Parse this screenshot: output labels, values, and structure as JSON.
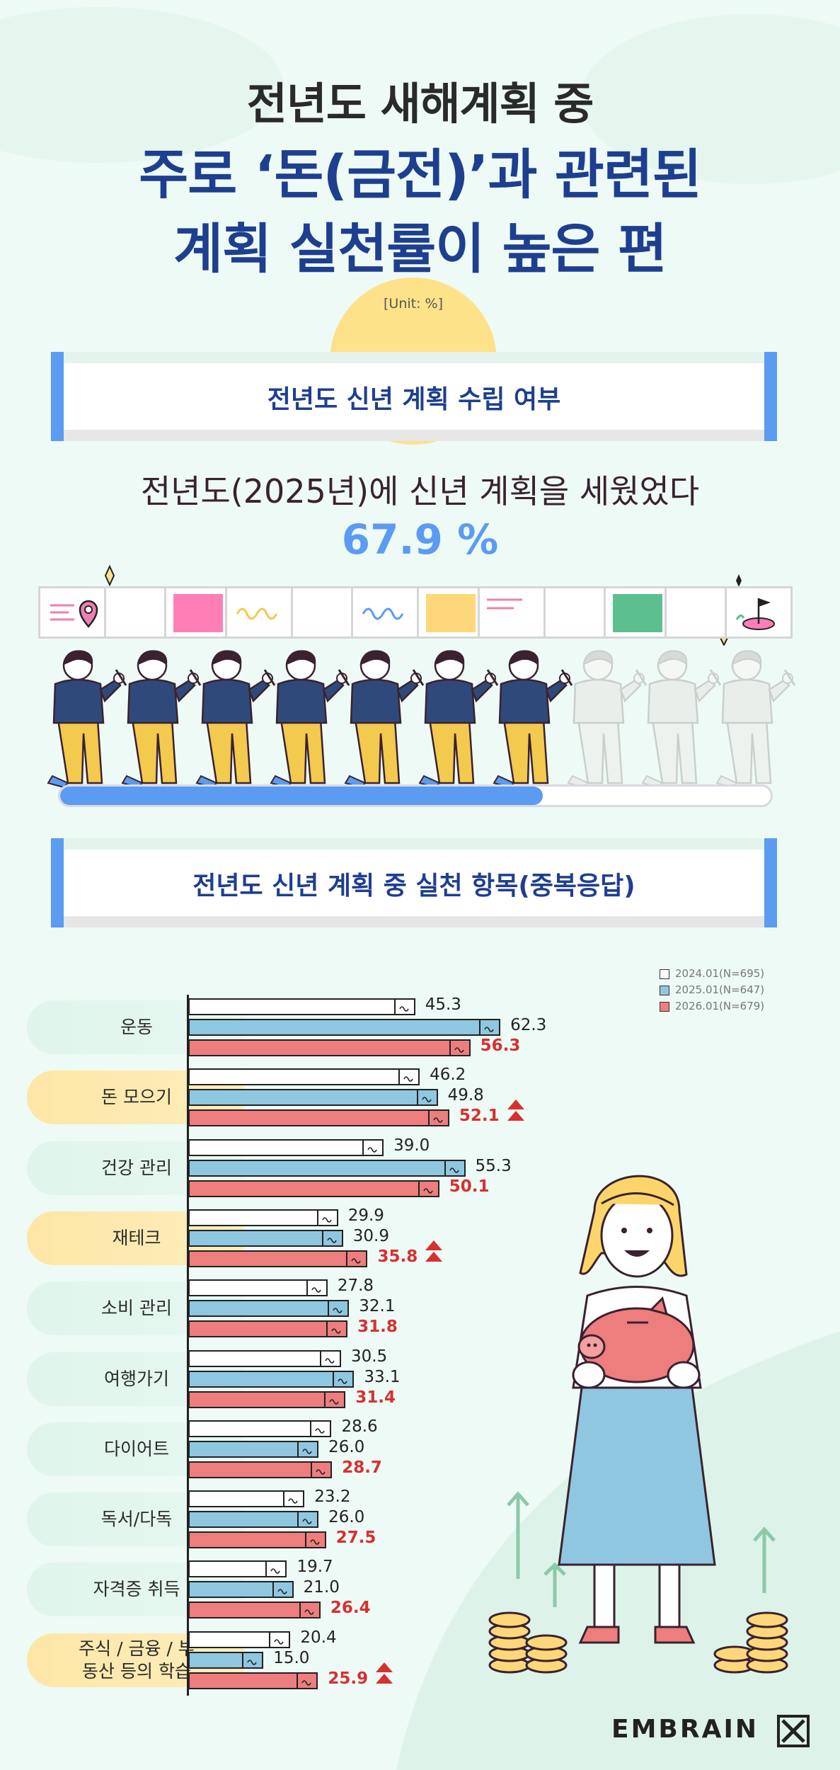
{
  "header": {
    "line1": "전년도 새해계획 중",
    "line2": "주로 ‘돈(금전)’과 관련된",
    "line3": "계획 실천률이 높은 편",
    "unit": "[Unit: %]"
  },
  "section1": {
    "title": "전년도 신년 계획 수립 여부",
    "question": "전년도(2025년)에 신년 계획을 세웠었다",
    "value_text": "67.9 %",
    "value": 67.9,
    "figures_total": 10,
    "figures_filled": 7
  },
  "section2": {
    "title": "전년도 신년 계획 중 실천 항목(중복응답)"
  },
  "colors": {
    "blue": "#5b9bf2",
    "navy": "#1e3f8f",
    "red": "#d63030",
    "s2024": "#ffffff",
    "s2025": "#8fc7e0",
    "s2026": "#ee7d7d"
  },
  "chart_data": {
    "type": "bar",
    "orientation": "horizontal",
    "categories": [
      "운동",
      "돈 모으기",
      "건강 관리",
      "재테크",
      "소비 관리",
      "여행가기",
      "다이어트",
      "독서/다독",
      "자격증 취득",
      "주식 / 금융 / 부동산 등의 학습"
    ],
    "highlighted": [
      false,
      true,
      false,
      true,
      false,
      false,
      false,
      false,
      false,
      true
    ],
    "series": [
      {
        "name": "2024.01(N=695)",
        "values": [
          45.3,
          46.2,
          39.0,
          29.9,
          27.8,
          30.5,
          28.6,
          23.2,
          19.7,
          20.4
        ]
      },
      {
        "name": "2025.01(N=647)",
        "values": [
          62.3,
          49.8,
          55.3,
          30.9,
          32.1,
          33.1,
          26.0,
          26.0,
          21.0,
          15.0
        ]
      },
      {
        "name": "2026.01(N=679)",
        "values": [
          56.3,
          52.1,
          50.1,
          35.8,
          31.8,
          31.4,
          28.7,
          27.5,
          26.4,
          25.9
        ]
      }
    ],
    "labels": [
      [
        "45.3",
        "46.2",
        "39.0",
        "29.9",
        "27.8",
        "30.5",
        "28.6",
        "23.2",
        "19.7",
        "20.4"
      ],
      [
        "62.3",
        "49.8",
        "55.3",
        "30.9",
        "32.1",
        "33.1",
        "26.0",
        "26.0",
        "21.0",
        "15.0"
      ],
      [
        "56.3",
        "52.1",
        "50.1",
        "35.8",
        "31.8",
        "31.4",
        "28.7",
        "27.5",
        "26.4",
        "25.9"
      ]
    ],
    "rising_marker": [
      false,
      true,
      false,
      true,
      false,
      false,
      false,
      false,
      false,
      true
    ],
    "legend_position": "top-right"
  },
  "footer": {
    "brand": "EMBRAIN"
  }
}
